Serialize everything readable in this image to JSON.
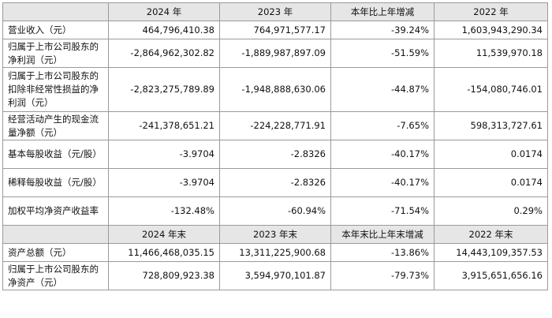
{
  "headers_a": [
    "",
    "2024 年",
    "2023 年",
    "本年比上年增减",
    "2022 年"
  ],
  "rows_a": [
    {
      "label": "营业收入（元）",
      "values": [
        "464,796,410.38",
        "764,971,577.17",
        "-39.24%",
        "1,603,943,290.34"
      ]
    },
    {
      "label": "归属于上市公司股东的净利润（元）",
      "values": [
        "-2,864,962,302.82",
        "-1,889,987,897.09",
        "-51.59%",
        "11,539,970.18"
      ]
    },
    {
      "label": "归属于上市公司股东的扣除非经常性损益的净利润（元）",
      "values": [
        "-2,823,275,789.89",
        "-1,948,888,630.06",
        "-44.87%",
        "-154,080,746.01"
      ]
    },
    {
      "label": "经营活动产生的现金流量净额（元）",
      "values": [
        "-241,378,651.21",
        "-224,228,771.91",
        "-7.65%",
        "598,313,727.61"
      ]
    },
    {
      "label": "基本每股收益（元/股）",
      "values": [
        "-3.9704",
        "-2.8326",
        "-40.17%",
        "0.0174"
      ]
    },
    {
      "label": "稀释每股收益（元/股）",
      "values": [
        "-3.9704",
        "-2.8326",
        "-40.17%",
        "0.0174"
      ]
    },
    {
      "label": "加权平均净资产收益率",
      "values": [
        "-132.48%",
        "-60.94%",
        "-71.54%",
        "0.29%"
      ]
    }
  ],
  "headers_b": [
    "",
    "2024 年末",
    "2023 年末",
    "本年末比上年末增减",
    "2022 年末"
  ],
  "rows_b": [
    {
      "label": "资产总额（元）",
      "values": [
        "11,466,468,035.15",
        "13,311,225,900.68",
        "-13.86%",
        "14,443,109,357.53"
      ]
    },
    {
      "label": "归属于上市公司股东的净资产（元）",
      "values": [
        "728,809,923.38",
        "3,594,970,101.87",
        "-79.73%",
        "3,915,651,656.16"
      ]
    }
  ]
}
